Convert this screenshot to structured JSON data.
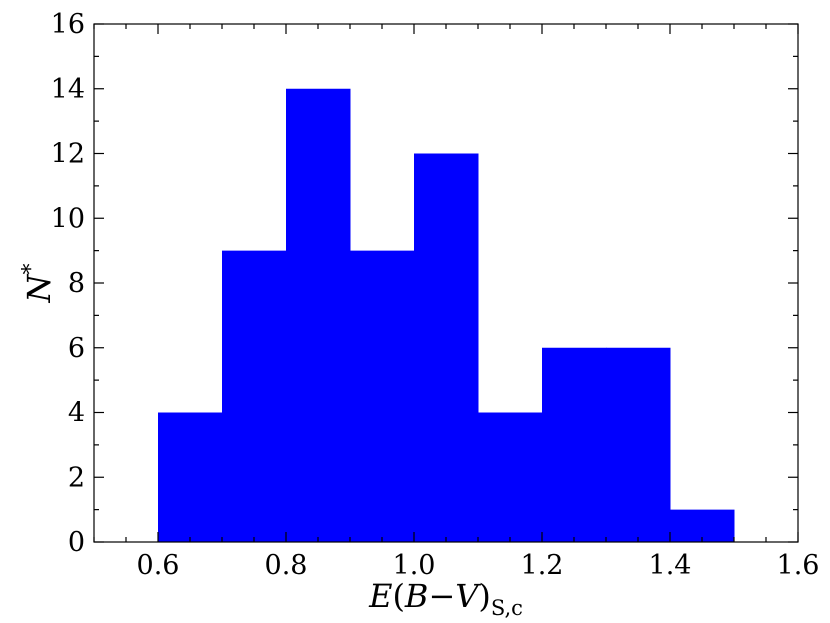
{
  "chart_data": {
    "type": "bar",
    "histogram": true,
    "bin_edges": [
      0.6,
      0.7,
      0.8,
      0.9,
      1.0,
      1.1,
      1.2,
      1.3,
      1.4,
      1.5
    ],
    "values": [
      4,
      9,
      14,
      9,
      12,
      4,
      6,
      6,
      1
    ],
    "xlim": [
      0.5,
      1.6
    ],
    "ylim": [
      0,
      16
    ],
    "x_ticks": [
      0.6,
      0.8,
      1.0,
      1.2,
      1.4,
      1.6
    ],
    "x_tick_labels": [
      "0.6",
      "0.8",
      "1.0",
      "1.2",
      "1.4",
      "1.6"
    ],
    "y_ticks": [
      0,
      2,
      4,
      6,
      8,
      10,
      12,
      14,
      16
    ],
    "y_tick_labels": [
      "0",
      "2",
      "4",
      "6",
      "8",
      "10",
      "12",
      "14",
      "16"
    ],
    "x_minor_step": 0.05,
    "y_minor_step": 1,
    "xlabel": {
      "main": "E",
      "open": "(",
      "b": "B",
      "minus": "−",
      "v": "V",
      "close": ")",
      "subscript": "S,c"
    },
    "ylabel": {
      "main": "N",
      "superscript": "*"
    },
    "bar_color": "#0000ff",
    "grid": false,
    "legend": "none"
  }
}
